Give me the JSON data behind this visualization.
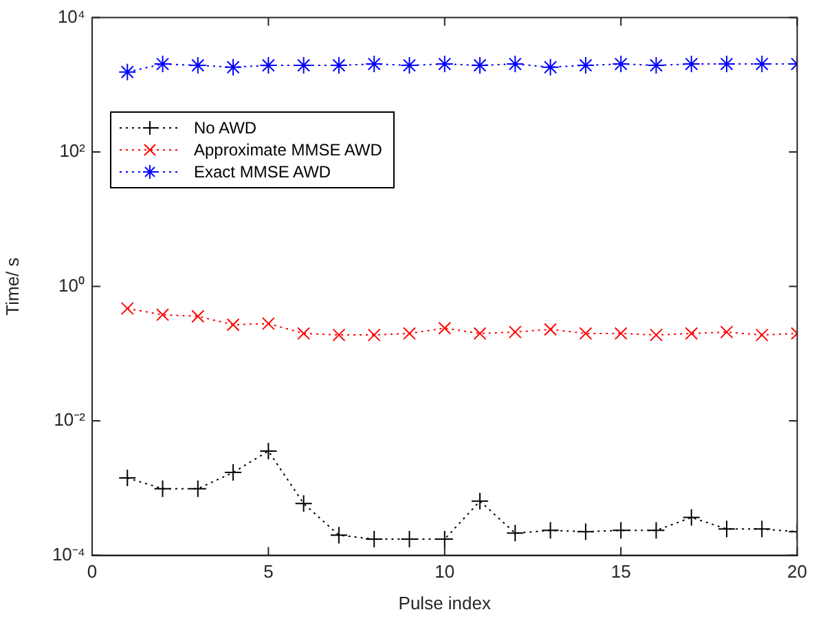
{
  "chart_data": {
    "type": "line",
    "xlabel": "Pulse index",
    "ylabel": "Time/ s",
    "x": [
      1,
      2,
      3,
      4,
      5,
      6,
      7,
      8,
      9,
      10,
      11,
      12,
      13,
      14,
      15,
      16,
      17,
      18,
      19,
      20
    ],
    "xlim": [
      0,
      20
    ],
    "xticks": [
      0,
      5,
      10,
      15,
      20
    ],
    "ylim": [
      0.0001,
      10000
    ],
    "yticks": [
      {
        "value": 0.0001,
        "label": "10⁻⁴"
      },
      {
        "value": 0.01,
        "label": "10⁻²"
      },
      {
        "value": 1,
        "label": "10⁰"
      },
      {
        "value": 100,
        "label": "10²"
      },
      {
        "value": 10000,
        "label": "10⁴"
      }
    ],
    "log": true,
    "grid": false,
    "legend": "top left",
    "line_style": "dotted",
    "series": [
      {
        "name": "No AWD",
        "color": "#000000",
        "marker": "plus",
        "values": [
          0.00142,
          0.00098,
          0.00098,
          0.00171,
          0.00356,
          0.00059,
          0.0002,
          0.000174,
          0.000174,
          0.000174,
          0.00064,
          0.000214,
          0.000235,
          0.000225,
          0.000235,
          0.000235,
          0.000366,
          0.000247,
          0.000247,
          0.000225
        ]
      },
      {
        "name": "Approximate MMSE AWD",
        "color": "#ff0000",
        "marker": "x",
        "values": [
          0.47,
          0.38,
          0.36,
          0.27,
          0.28,
          0.2,
          0.19,
          0.19,
          0.2,
          0.24,
          0.2,
          0.21,
          0.23,
          0.2,
          0.2,
          0.19,
          0.2,
          0.21,
          0.19,
          0.2
        ]
      },
      {
        "name": "Exact MMSE AWD",
        "color": "#0000ff",
        "marker": "cross",
        "values": [
          1550,
          2040,
          1950,
          1830,
          1950,
          1950,
          1950,
          2040,
          1950,
          2040,
          1950,
          2040,
          1830,
          1950,
          2040,
          1950,
          2040,
          2040,
          2040,
          2040
        ]
      }
    ]
  }
}
